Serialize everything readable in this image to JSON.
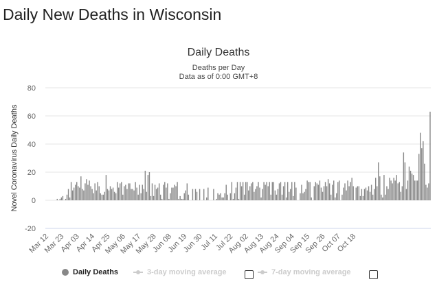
{
  "page": {
    "heading": "Daily New Deaths in Wisconsin"
  },
  "chart_data": {
    "type": "bar",
    "title": "Daily Deaths",
    "subtitle": "Deaths per Day",
    "subtitle2": "Data as of 0:00 GMT+8",
    "ylabel": "Novel Coronavirus Daily Deaths",
    "xlabel": "",
    "ylim": [
      -20,
      80
    ],
    "yticks": [
      -20,
      0,
      20,
      40,
      60,
      80
    ],
    "grid": true,
    "start_date": "2020-03-12",
    "x_tick_labels": [
      "Mar 12",
      "Mar 23",
      "Apr 03",
      "Apr 14",
      "Apr 25",
      "May 06",
      "May 17",
      "May 28",
      "Jun 08",
      "Jun 19",
      "Jun 30",
      "Jul 11",
      "Jul 22",
      "Aug 02",
      "Aug 13",
      "Aug 24",
      "Sep 04",
      "Sep 15",
      "Sep 26",
      "Oct 07",
      "Oct 18"
    ],
    "series": [
      {
        "name": "Daily Deaths",
        "color": "#888888",
        "values": [
          0,
          0,
          0,
          0,
          0,
          0,
          0,
          0,
          1,
          0,
          1,
          2,
          3,
          0,
          1,
          4,
          8,
          2,
          13,
          7,
          9,
          11,
          13,
          10,
          9,
          17,
          8,
          7,
          12,
          15,
          11,
          14,
          10,
          8,
          5,
          12,
          7,
          13,
          10,
          5,
          4,
          4,
          6,
          18,
          8,
          7,
          10,
          8,
          9,
          6,
          5,
          13,
          9,
          12,
          13,
          4,
          10,
          11,
          8,
          12,
          12,
          8,
          8,
          7,
          13,
          9,
          4,
          11,
          5,
          11,
          8,
          21,
          6,
          18,
          20,
          3,
          12,
          3,
          11,
          8,
          9,
          12,
          4,
          1,
          11,
          13,
          9,
          12,
          1,
          5,
          9,
          9,
          11,
          10,
          13,
          1,
          3,
          1,
          1,
          5,
          7,
          12,
          4,
          0,
          0,
          8,
          0,
          8,
          6,
          0,
          8,
          0,
          0,
          8,
          0,
          2,
          9,
          0,
          0,
          0,
          8,
          0,
          1,
          5,
          4,
          5,
          2,
          2,
          5,
          11,
          4,
          0,
          5,
          13,
          1,
          5,
          9,
          13,
          1,
          13,
          10,
          13,
          4,
          13,
          13,
          7,
          10,
          12,
          13,
          6,
          8,
          10,
          13,
          9,
          2,
          8,
          13,
          11,
          13,
          10,
          13,
          4,
          13,
          13,
          7,
          4,
          8,
          12,
          13,
          4,
          10,
          13,
          2,
          13,
          6,
          8,
          13,
          3,
          13,
          9,
          0,
          0,
          5,
          11,
          5,
          6,
          8,
          14,
          13,
          13,
          2,
          0,
          10,
          13,
          12,
          11,
          14,
          9,
          6,
          10,
          13,
          10,
          15,
          12,
          4,
          11,
          14,
          2,
          5,
          13,
          14,
          0,
          4,
          9,
          12,
          7,
          14,
          10,
          13,
          16,
          10,
          0,
          9,
          10,
          10,
          3,
          8,
          3,
          8,
          9,
          7,
          10,
          6,
          11,
          4,
          8,
          16,
          10,
          27,
          17,
          4,
          2,
          18,
          4,
          10,
          8,
          16,
          14,
          12,
          16,
          14,
          18,
          12,
          13,
          6,
          10,
          34,
          27,
          8,
          14,
          24,
          21,
          19,
          18,
          14,
          14,
          14,
          33,
          48,
          37,
          42,
          26,
          11,
          9,
          12,
          63
        ]
      }
    ]
  },
  "legend": {
    "items": [
      {
        "label": "Daily Deaths",
        "active": true
      },
      {
        "label": "3-day moving average",
        "active": false
      },
      {
        "label": "7-day moving average",
        "active": false
      }
    ]
  }
}
